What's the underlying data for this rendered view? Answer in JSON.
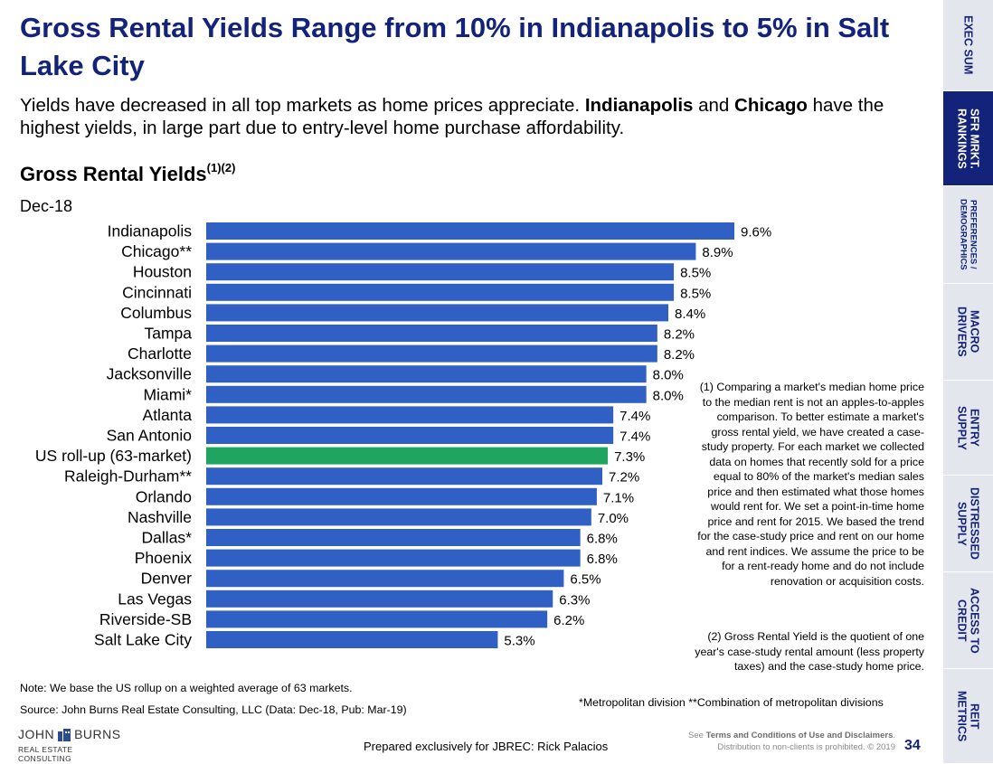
{
  "header": {
    "title": "Gross Rental Yields Range from 10% in Indianapolis to 5% in Salt Lake City",
    "subtitle_part1": "Yields have decreased in all top markets as home prices appreciate. ",
    "subtitle_bold1": "Indianapolis",
    "subtitle_part2": " and ",
    "subtitle_bold2": "Chicago",
    "subtitle_part3": " have the highest yields, in large part due to entry-level home purchase affordability."
  },
  "chart_data": {
    "type": "bar",
    "orientation": "horizontal",
    "title": "Gross Rental Yields",
    "title_superscript": "(1)(2)",
    "period": "Dec-18",
    "categories": [
      "Indianapolis",
      "Chicago**",
      "Houston",
      "Cincinnati",
      "Columbus",
      "Tampa",
      "Charlotte",
      "Jacksonville",
      "Miami*",
      "Atlanta",
      "San Antonio",
      "US roll-up (63-market)",
      "Raleigh-Durham**",
      "Orlando",
      "Nashville",
      "Dallas*",
      "Phoenix",
      "Denver",
      "Las Vegas",
      "Riverside-SB",
      "Salt Lake City"
    ],
    "values": [
      9.6,
      8.9,
      8.5,
      8.5,
      8.4,
      8.2,
      8.2,
      8.0,
      8.0,
      7.4,
      7.4,
      7.3,
      7.2,
      7.1,
      7.0,
      6.8,
      6.8,
      6.5,
      6.3,
      6.2,
      5.3
    ],
    "value_labels": [
      "9.6%",
      "8.9%",
      "8.5%",
      "8.5%",
      "8.4%",
      "8.2%",
      "8.2%",
      "8.0%",
      "8.0%",
      "7.4%",
      "7.4%",
      "7.3%",
      "7.2%",
      "7.1%",
      "7.0%",
      "6.8%",
      "6.8%",
      "6.5%",
      "6.3%",
      "6.2%",
      "5.3%"
    ],
    "highlight_index": 11,
    "bar_color": "#3160c4",
    "highlight_color": "#1fa55f",
    "xlim": [
      0,
      9.6
    ],
    "grid": false,
    "legend": "none"
  },
  "footnotes": {
    "note1": "(1) Comparing a market's median home price to the median rent is not an apples-to-apples comparison. To better estimate a market's gross rental yield, we have created a case-study property. For each market we collected data on homes that recently sold for a price equal to 80% of the market's median sales price and then estimated what those homes would rent for. We set a point-in-time home price and rent for 2015. We based the trend for the case-study price and rent on our home and rent indices. We assume the price to be for a rent-ready home and do not include renovation or acquisition costs.",
    "note2": "(2) Gross Rental Yield is the quotient of one year's case-study rental amount (less property taxes) and the case-study home price.",
    "divisions": "*Metropolitan division  **Combination of metropolitan divisions",
    "rollup_note": "Note: We base the US rollup on a weighted average of 63 markets.",
    "source": "Source: John Burns Real Estate Consulting, LLC (Data: Dec-18, Pub: Mar-19)"
  },
  "footer": {
    "logo_left": "JOHN",
    "logo_right": "BURNS",
    "logo_sub": "REAL ESTATE CONSULTING",
    "prepared": "Prepared exclusively for JBREC: Rick Palacios",
    "legal_see": "See ",
    "legal_bold": "Terms and Conditions of Use and Disclaimers",
    "legal_end": ".",
    "legal_line2": "Distribution to non-clients is prohibited. © 2019",
    "page_number": "34"
  },
  "sidenav": {
    "items": [
      {
        "label": "EXEC SUM"
      },
      {
        "label": "SFR MRKT.\nRANKINGS"
      },
      {
        "label": "PREFERENCES /\nDEMOGRAPHICS"
      },
      {
        "label": "MACRO\nDRIVERS"
      },
      {
        "label": "ENTRY\nSUPPLY"
      },
      {
        "label": "DISTRESSED\nSUPPLY"
      },
      {
        "label": "ACCESS TO\nCREDIT"
      },
      {
        "label": "REIT\nMETRICS"
      }
    ],
    "active_index": 1
  },
  "colors": {
    "title": "#13237a",
    "nav_bg": "#e4e6ee",
    "nav_active_bg": "#13237a"
  }
}
